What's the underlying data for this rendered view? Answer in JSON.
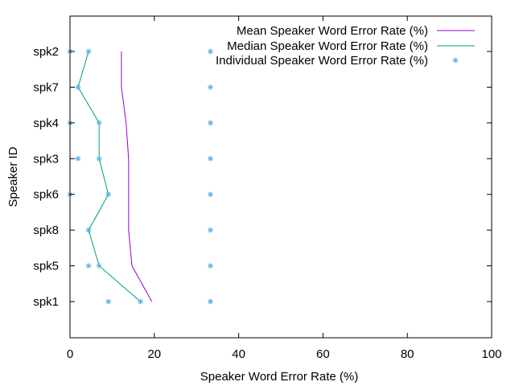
{
  "chart_data": {
    "type": "line",
    "title": "",
    "xlabel": "Speaker Word Error Rate (%)",
    "ylabel": "Speaker ID",
    "xlim": [
      0,
      100
    ],
    "xticks": [
      0,
      20,
      40,
      60,
      80,
      100
    ],
    "categories": [
      "spk1",
      "spk5",
      "spk8",
      "spk6",
      "spk3",
      "spk4",
      "spk7",
      "spk2"
    ],
    "grid": false,
    "legend_position": "top-right",
    "series": [
      {
        "name": "Mean Speaker Word Error Rate (%)",
        "style": "line",
        "color": "#9400d3",
        "values": [
          19.4,
          14.7,
          13.9,
          13.9,
          13.9,
          13.3,
          12.2,
          12.2
        ]
      },
      {
        "name": "Median Speaker Word Error Rate (%)",
        "style": "line",
        "color": "#009e73",
        "values": [
          16.7,
          6.9,
          4.4,
          9.1,
          6.9,
          6.9,
          1.9,
          4.4
        ]
      },
      {
        "name": "Individual Speaker Word Error Rate (%)",
        "style": "points",
        "color": "#56b4e9",
        "points": [
          {
            "category": "spk1",
            "values": [
              9.1,
              16.7,
              33.3
            ]
          },
          {
            "category": "spk5",
            "values": [
              4.4,
              6.9,
              33.3
            ]
          },
          {
            "category": "spk8",
            "values": [
              4.4,
              33.3
            ]
          },
          {
            "category": "spk6",
            "values": [
              0,
              9.1,
              33.3
            ]
          },
          {
            "category": "spk3",
            "values": [
              1.9,
              6.9,
              33.3
            ]
          },
          {
            "category": "spk4",
            "values": [
              0,
              6.9,
              33.3
            ]
          },
          {
            "category": "spk7",
            "values": [
              1.9,
              33.3
            ]
          },
          {
            "category": "spk2",
            "values": [
              0,
              4.4,
              33.3
            ]
          }
        ]
      }
    ]
  }
}
